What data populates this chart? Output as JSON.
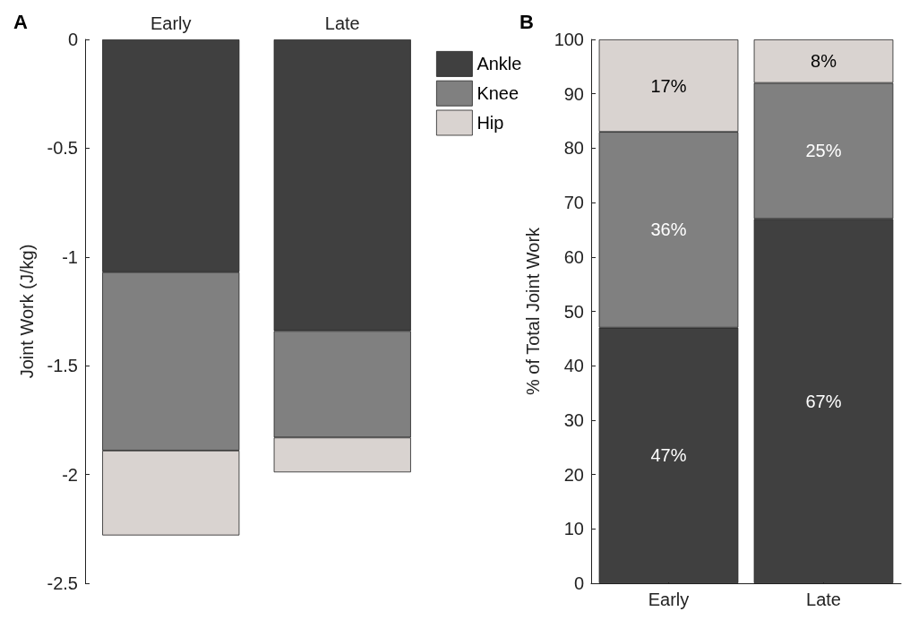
{
  "chart_data": [
    {
      "type": "bar",
      "title": "A",
      "ylabel": "Joint Work (J/kg)",
      "categories": [
        "Early",
        "Late"
      ],
      "stacked": true,
      "ylim": [
        -2.5,
        0
      ],
      "yticks": [
        0,
        -0.5,
        -1,
        -1.5,
        -2,
        -2.5
      ],
      "grid": false,
      "legend": "top right",
      "series": [
        {
          "name": "Ankle",
          "color": "#404040",
          "values": [
            -1.07,
            -1.34
          ]
        },
        {
          "name": "Knee",
          "color": "#808080",
          "values": [
            -0.82,
            -0.49
          ]
        },
        {
          "name": "Hip",
          "color": "#d9d3d0",
          "values": [
            -0.39,
            -0.16
          ]
        }
      ]
    },
    {
      "type": "bar",
      "title": "B",
      "ylabel": "% of Total Joint Work",
      "categories": [
        "Early",
        "Late"
      ],
      "stacked": true,
      "ylim": [
        0,
        100
      ],
      "yticks": [
        0,
        10,
        20,
        30,
        40,
        50,
        60,
        70,
        80,
        90,
        100
      ],
      "grid": false,
      "legend": false,
      "series": [
        {
          "color": "#404040",
          "values": [
            47,
            67
          ],
          "value_labels": [
            "47%",
            "67%"
          ]
        },
        {
          "color": "#808080",
          "values": [
            36,
            25
          ],
          "value_labels": [
            "36%",
            "25%"
          ]
        },
        {
          "color": "#d9d3d0",
          "values": [
            17,
            8
          ],
          "value_labels": [
            "17%",
            "8%"
          ]
        }
      ]
    }
  ]
}
